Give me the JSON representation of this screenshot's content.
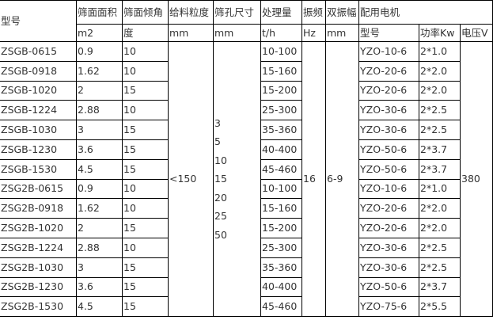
{
  "header": {
    "model": "型号",
    "area": "筛面面积",
    "angle": "筛面倾角",
    "feed": "给料粒度",
    "aperture": "筛孔尺寸",
    "capacity": "处理量",
    "freq": "振频",
    "amp": "双振幅",
    "motor": "配用电机"
  },
  "units": {
    "area": "m2",
    "angle": "度",
    "feed": "mm",
    "aperture": "mm",
    "capacity": "t/h",
    "freq": "Hz",
    "amp": "mm",
    "motor_model": "型号",
    "power": "功率Kw",
    "voltage": "电压V"
  },
  "shared": {
    "feed": "<150",
    "apertures": [
      "3",
      "5",
      "10",
      "15",
      "20",
      "25",
      "50"
    ],
    "freq": "16",
    "amp": "6-9",
    "voltage": "380"
  },
  "rows": [
    {
      "model": "ZSGB-0615",
      "area": "0.9",
      "angle": "10",
      "capacity": "10-100",
      "motor": "YZO-10-6",
      "power": "2*1.0"
    },
    {
      "model": "ZSGB-0918",
      "area": "1.62",
      "angle": "10",
      "capacity": "15-160",
      "motor": "YZO-20-6",
      "power": "2*2.0"
    },
    {
      "model": "ZSGB-1020",
      "area": "2",
      "angle": "15",
      "capacity": "15-200",
      "motor": "YZO-20-6",
      "power": "2*2.0"
    },
    {
      "model": "ZSGB-1224",
      "area": "2.88",
      "angle": "10",
      "capacity": "25-300",
      "motor": "YZO-30-6",
      "power": "2*2.5"
    },
    {
      "model": "ZSGB-1030",
      "area": "3",
      "angle": "15",
      "capacity": "35-360",
      "motor": "YZO-30-6",
      "power": "2*2.5"
    },
    {
      "model": "ZSGB-1230",
      "area": "3.6",
      "angle": "15",
      "capacity": "40-400",
      "motor": "YZO-50-6",
      "power": "2*3.7"
    },
    {
      "model": "ZSGB-1530",
      "area": "4.5",
      "angle": "15",
      "capacity": "45-460",
      "motor": "YZO-50-6",
      "power": "2*3.7"
    },
    {
      "model": "ZSG2B-0615",
      "area": "0.9",
      "angle": "10",
      "capacity": "10-100",
      "motor": "YZO-10-6",
      "power": "2*1.0"
    },
    {
      "model": "ZSG2B-0918",
      "area": "1.62",
      "angle": "10",
      "capacity": "15-160",
      "motor": "YZO-20-6",
      "power": "2*2.0"
    },
    {
      "model": "ZSG2B-1020",
      "area": "2",
      "angle": "15",
      "capacity": "15-200",
      "motor": "YZO-20-6",
      "power": "2*2.0"
    },
    {
      "model": "ZSG2B-1224",
      "area": "2.88",
      "angle": "10",
      "capacity": "25-300",
      "motor": "YZO-30-6",
      "power": "2*2.5"
    },
    {
      "model": "ZSG2B-1030",
      "area": "3",
      "angle": "15",
      "capacity": "35-360",
      "motor": "YZO-30-6",
      "power": "2*2.5"
    },
    {
      "model": "ZSG2B-1230",
      "area": "3.6",
      "angle": "15",
      "capacity": "40-400",
      "motor": "YZO-50-6",
      "power": "2*3.7"
    },
    {
      "model": "ZSG2B-1530",
      "area": "4.5",
      "angle": "15",
      "capacity": "45-460",
      "motor": "YZO-75-6",
      "power": "2*5.5"
    }
  ]
}
